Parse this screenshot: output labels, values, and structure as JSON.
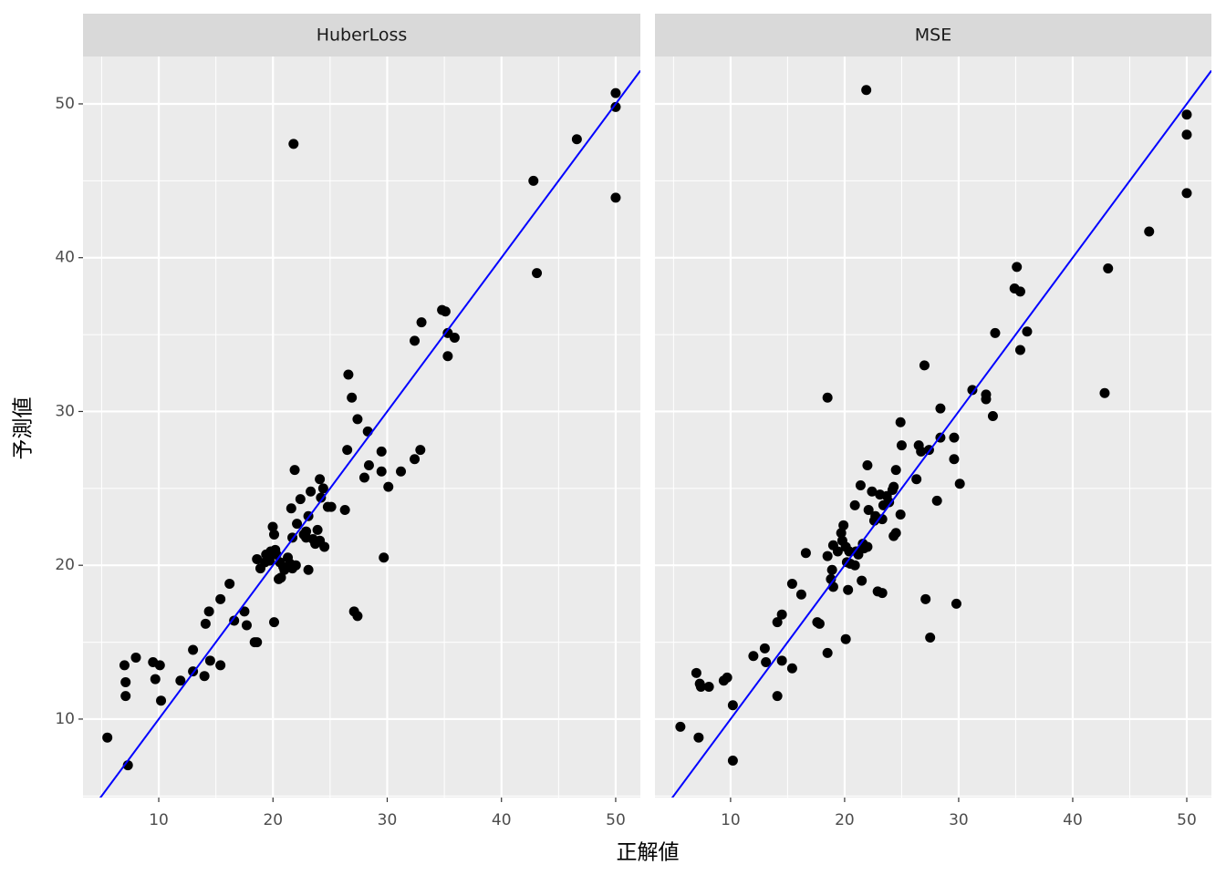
{
  "chart_data": [
    {
      "type": "scatter",
      "title": "HuberLoss",
      "xlabel": "正解値",
      "ylabel": "予測値",
      "color": "#000000",
      "x": [
        5.5,
        7.3,
        7.0,
        7.1,
        7.1,
        8.0,
        9.5,
        10.1,
        9.7,
        10.2,
        11.9,
        13.0,
        13.0,
        14.1,
        14.4,
        14.0,
        14.5,
        15.4,
        15.4,
        16.2,
        16.6,
        17.5,
        17.7,
        18.4,
        18.6,
        18.6,
        18.9,
        19.3,
        19.4,
        19.7,
        19.8,
        19.98,
        20.1,
        20.1,
        20.2,
        20.3,
        20.6,
        20.5,
        20.7,
        20.9,
        21.0,
        21.3,
        21.5,
        21.8,
        21.6,
        21.7,
        21.7,
        21.9,
        22.0,
        22.1,
        22.4,
        22.7,
        22.9,
        22.9,
        23.1,
        23.1,
        23.3,
        23.5,
        23.7,
        23.9,
        24.1,
        24.1,
        24.2,
        24.4,
        24.5,
        24.8,
        25.1,
        26.3,
        26.5,
        26.6,
        26.9,
        27.1,
        27.4,
        27.4,
        28.0,
        28.3,
        28.4,
        29.5,
        29.5,
        29.7,
        30.1,
        31.2,
        32.4,
        32.4,
        32.9,
        33.0,
        34.8,
        35.1,
        35.3,
        35.3,
        35.9,
        42.8,
        43.1,
        46.6,
        50.0,
        50.0,
        50.0
      ],
      "values": [
        8.8,
        7.0,
        13.5,
        12.4,
        11.5,
        14.0,
        13.7,
        13.5,
        12.6,
        11.2,
        12.5,
        14.5,
        13.1,
        16.2,
        17.0,
        12.8,
        13.8,
        13.5,
        17.8,
        18.8,
        16.4,
        17.0,
        16.1,
        15.0,
        15.0,
        20.4,
        19.8,
        20.2,
        20.7,
        20.3,
        20.9,
        22.5,
        22.0,
        16.3,
        21.0,
        20.7,
        20.2,
        19.1,
        19.2,
        19.9,
        19.7,
        20.5,
        20.1,
        47.4,
        23.7,
        21.8,
        19.8,
        26.2,
        20.0,
        22.7,
        24.3,
        22.0,
        21.8,
        22.2,
        23.2,
        19.7,
        24.8,
        21.7,
        21.4,
        22.3,
        25.6,
        21.6,
        24.4,
        25.0,
        21.2,
        23.8,
        23.8,
        23.6,
        27.5,
        32.4,
        30.9,
        17.0,
        16.7,
        29.5,
        25.7,
        28.7,
        26.5,
        26.1,
        27.4,
        20.5,
        25.1,
        26.1,
        34.6,
        26.9,
        27.5,
        35.8,
        36.6,
        36.5,
        35.1,
        33.6,
        34.8,
        45.0,
        39.0,
        47.7,
        50.7,
        49.8,
        43.9
      ],
      "xlim": [
        3.37,
        52.16
      ],
      "ylim": [
        4.9,
        53.08
      ],
      "xticks": [
        10,
        20,
        30,
        40,
        50
      ],
      "yticks": [
        10,
        20,
        30,
        40,
        50
      ],
      "minor_xticks": [
        5,
        15,
        25,
        35,
        45
      ],
      "minor_yticks": [
        5,
        15,
        25,
        35,
        45
      ],
      "reference_line": {
        "slope": 1,
        "intercept": 0,
        "color": "#0000ff"
      }
    },
    {
      "type": "scatter",
      "title": "MSE",
      "color": "#000000",
      "x": [
        5.6,
        7.2,
        7.0,
        7.3,
        7.4,
        8.1,
        9.7,
        9.4,
        10.2,
        10.2,
        12.0,
        13.0,
        13.1,
        14.1,
        14.5,
        14.1,
        14.5,
        15.4,
        15.4,
        16.2,
        16.6,
        17.6,
        17.8,
        18.5,
        18.5,
        18.5,
        18.8,
        18.9,
        19.0,
        19.0,
        19.4,
        19.7,
        19.8,
        19.9,
        20.1,
        20.1,
        20.2,
        20.3,
        20.4,
        20.5,
        20.9,
        20.9,
        21.0,
        21.2,
        21.4,
        21.5,
        21.6,
        21.7,
        21.9,
        22.0,
        22.0,
        22.1,
        22.4,
        22.6,
        22.7,
        22.9,
        23.1,
        23.3,
        23.3,
        23.4,
        23.7,
        23.9,
        24.2,
        24.3,
        24.3,
        24.5,
        24.5,
        24.9,
        25.0,
        24.9,
        26.3,
        26.5,
        26.7,
        27.0,
        27.1,
        27.4,
        27.5,
        28.1,
        28.4,
        28.4,
        29.6,
        29.6,
        29.8,
        30.1,
        31.2,
        32.4,
        32.4,
        33.0,
        33.2,
        34.9,
        35.1,
        35.4,
        35.4,
        36.0,
        42.8,
        43.1,
        46.7,
        50.0,
        50.0,
        50.0
      ],
      "values": [
        9.5,
        8.8,
        13.0,
        12.3,
        12.1,
        12.1,
        12.7,
        12.5,
        10.9,
        7.3,
        14.1,
        14.6,
        13.7,
        16.3,
        16.8,
        11.5,
        13.8,
        18.8,
        13.3,
        18.1,
        20.8,
        16.3,
        16.2,
        14.3,
        20.6,
        30.9,
        19.1,
        19.7,
        21.3,
        18.6,
        20.9,
        22.1,
        21.6,
        22.6,
        15.2,
        21.2,
        20.2,
        18.4,
        20.9,
        20.1,
        23.9,
        20.0,
        20.9,
        20.7,
        25.2,
        19.0,
        21.4,
        21.1,
        50.9,
        26.5,
        21.2,
        23.6,
        24.8,
        22.9,
        23.2,
        18.3,
        24.6,
        18.2,
        23.0,
        23.9,
        24.5,
        24.1,
        24.9,
        25.1,
        21.9,
        26.2,
        22.1,
        29.3,
        27.8,
        23.3,
        25.6,
        27.8,
        27.4,
        33.0,
        17.8,
        27.5,
        15.3,
        24.2,
        30.2,
        28.3,
        28.3,
        26.9,
        17.5,
        25.3,
        31.4,
        31.1,
        30.8,
        29.7,
        35.1,
        38.0,
        39.4,
        37.8,
        34.0,
        35.2,
        31.2,
        39.3,
        41.7,
        49.3,
        48.0,
        44.2
      ],
      "xlim": [
        3.37,
        52.16
      ],
      "ylim": [
        4.9,
        53.08
      ],
      "xticks": [
        10,
        20,
        30,
        40,
        50
      ],
      "yticks": [
        10,
        20,
        30,
        40,
        50
      ],
      "minor_xticks": [
        5,
        15,
        25,
        35,
        45
      ],
      "minor_yticks": [
        5,
        15,
        25,
        35,
        45
      ],
      "reference_line": {
        "slope": 1,
        "intercept": 0,
        "color": "#0000ff"
      }
    }
  ]
}
